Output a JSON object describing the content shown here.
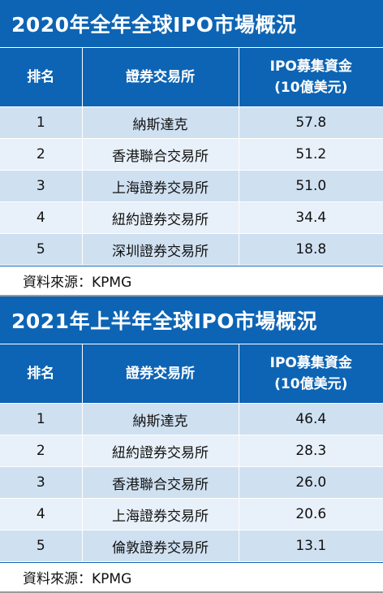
{
  "table1": {
    "title": "2020年全年全球IPO市場概況",
    "headers": {
      "rank": "排名",
      "exchange": "證券交易所",
      "amount_line1": "IPO募集資金",
      "amount_line2": "(10億美元)"
    },
    "rows": [
      {
        "rank": "1",
        "exchange": "納斯達克",
        "amount": "57.8"
      },
      {
        "rank": "2",
        "exchange": "香港聯合交易所",
        "amount": "51.2"
      },
      {
        "rank": "3",
        "exchange": "上海證券交易所",
        "amount": "51.0"
      },
      {
        "rank": "4",
        "exchange": "紐約證券交易所",
        "amount": "34.4"
      },
      {
        "rank": "5",
        "exchange": "深圳證券交易所",
        "amount": "18.8"
      }
    ],
    "source": "資料來源：KPMG"
  },
  "table2": {
    "title": "2021年上半年全球IPO市場概況",
    "headers": {
      "rank": "排名",
      "exchange": "證券交易所",
      "amount_line1": "IPO募集資金",
      "amount_line2": "(10億美元)"
    },
    "rows": [
      {
        "rank": "1",
        "exchange": "納斯達克",
        "amount": "46.4"
      },
      {
        "rank": "2",
        "exchange": "紐約證券交易所",
        "amount": "28.3"
      },
      {
        "rank": "3",
        "exchange": "香港聯合交易所",
        "amount": "26.0"
      },
      {
        "rank": "4",
        "exchange": "上海證券交易所",
        "amount": "20.6"
      },
      {
        "rank": "5",
        "exchange": "倫敦證券交易所",
        "amount": "13.1"
      }
    ],
    "source": "資料來源：KPMG"
  }
}
